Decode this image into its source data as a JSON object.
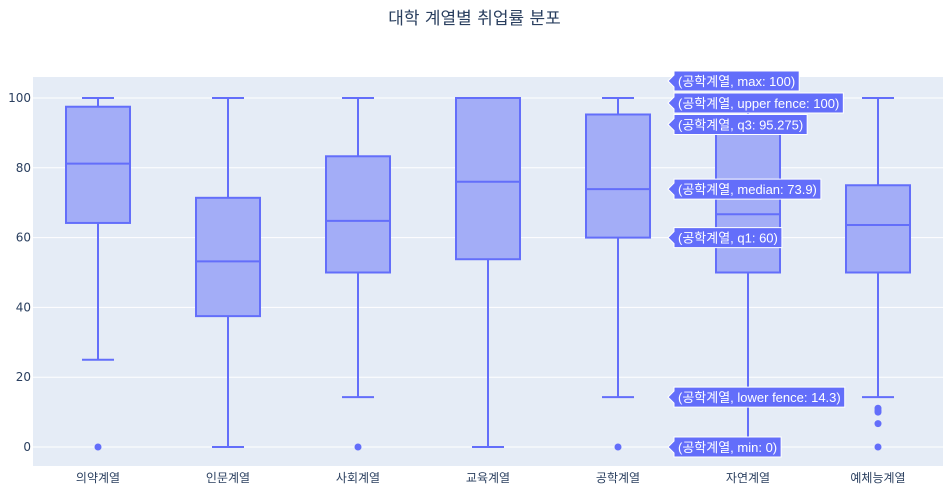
{
  "title": "대학 계열별 취업률 분포",
  "colors": {
    "plot_bg": "#e5ecf6",
    "box_fill": "#a3adf7",
    "box_line": "#636efa",
    "grid": "#ffffff",
    "text": "#2a3f5f"
  },
  "chart_data": {
    "type": "box",
    "title": "대학 계열별 취업률 분포",
    "xlabel": "",
    "ylabel": "",
    "ylim": [
      -5,
      106
    ],
    "yticks": [
      0,
      20,
      40,
      60,
      80,
      100
    ],
    "grid": true,
    "categories": [
      "의약계열",
      "인문계열",
      "사회계열",
      "교육계열",
      "공학계열",
      "자연계열",
      "예체능계열"
    ],
    "boxes": [
      {
        "name": "의약계열",
        "lower_fence": 25,
        "q1": 64.2,
        "median": 81.2,
        "q3": 97.5,
        "upper_fence": 100,
        "outliers": [
          0
        ]
      },
      {
        "name": "인문계열",
        "lower_fence": 0,
        "q1": 37.5,
        "median": 53.2,
        "q3": 71.4,
        "upper_fence": 100,
        "outliers": []
      },
      {
        "name": "사회계열",
        "lower_fence": 14.3,
        "q1": 50,
        "median": 64.8,
        "q3": 83.3,
        "upper_fence": 100,
        "outliers": [
          0
        ]
      },
      {
        "name": "교육계열",
        "lower_fence": 0,
        "q1": 53.8,
        "median": 76,
        "q3": 100,
        "upper_fence": 100,
        "outliers": []
      },
      {
        "name": "공학계열",
        "lower_fence": 14.3,
        "q1": 60,
        "median": 73.9,
        "q3": 95.275,
        "upper_fence": 100,
        "outliers": [
          0
        ]
      },
      {
        "name": "자연계열",
        "lower_fence": 0,
        "q1": 50,
        "median": 66.7,
        "q3": 90,
        "upper_fence": 100,
        "outliers": []
      },
      {
        "name": "예체능계열",
        "lower_fence": 14.3,
        "q1": 50,
        "median": 63.6,
        "q3": 75,
        "upper_fence": 100,
        "outliers": [
          0,
          6.7,
          10,
          10.5,
          11.1
        ]
      }
    ],
    "hover": {
      "category": "공학계열",
      "labels": [
        {
          "text": "(공학계열, max: 100)",
          "value": 100,
          "dy": -17
        },
        {
          "text": "(공학계열, upper fence: 100)",
          "value": 100,
          "dy": 5
        },
        {
          "text": "(공학계열, q3: 95.275)",
          "value": 95.275,
          "dy": 10
        },
        {
          "text": "(공학계열, median: 73.9)",
          "value": 73.9,
          "dy": 0
        },
        {
          "text": "(공학계열, q1: 60)",
          "value": 60,
          "dy": 0
        },
        {
          "text": "(공학계열, lower fence: 14.3)",
          "value": 14.3,
          "dy": 0
        },
        {
          "text": "(공학계열, min: 0)",
          "value": 0,
          "dy": 0
        }
      ]
    }
  }
}
